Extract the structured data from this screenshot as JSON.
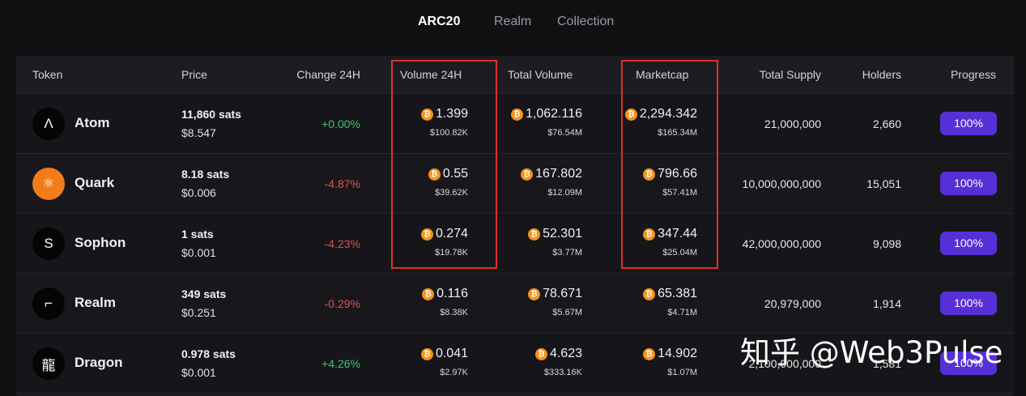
{
  "tabs": [
    {
      "label": "ARC20",
      "active": true
    },
    {
      "label": "Realm",
      "active": false
    },
    {
      "label": "Collection",
      "active": false
    }
  ],
  "columns": {
    "token": "Token",
    "price": "Price",
    "change": "Change 24H",
    "volume24": "Volume 24H",
    "total_volume": "Total Volume",
    "marketcap": "Marketcap",
    "total_supply": "Total Supply",
    "holders": "Holders",
    "progress": "Progress"
  },
  "rows": [
    {
      "name": "Atom",
      "icon": "atom-logo-icon",
      "avatar_glyph": "Λ",
      "price_sats": "11,860 sats",
      "price_usd": "$8.547",
      "change": "+0.00%",
      "change_dir": "pos",
      "vol24_btc": "1.399",
      "vol24_usd": "$100.82K",
      "tvol_btc": "1,062.116",
      "tvol_usd": "$76.54M",
      "mcap_btc": "2,294.342",
      "mcap_usd": "$165.34M",
      "supply": "21,000,000",
      "holders": "2,660",
      "progress": "100%"
    },
    {
      "name": "Quark",
      "icon": "quark-atom-icon",
      "avatar_glyph": "⚛",
      "price_sats": "8.18 sats",
      "price_usd": "$0.006",
      "change": "-4.87%",
      "change_dir": "neg",
      "vol24_btc": "0.55",
      "vol24_usd": "$39.62K",
      "tvol_btc": "167.802",
      "tvol_usd": "$12.09M",
      "mcap_btc": "796.66",
      "mcap_usd": "$57.41M",
      "supply": "10,000,000,000",
      "holders": "15,051",
      "progress": "100%"
    },
    {
      "name": "Sophon",
      "icon": "sophon-letter-icon",
      "avatar_glyph": "S",
      "price_sats": "1 sats",
      "price_usd": "$0.001",
      "change": "-4.23%",
      "change_dir": "neg",
      "vol24_btc": "0.274",
      "vol24_usd": "$19.78K",
      "tvol_btc": "52.301",
      "tvol_usd": "$3.77M",
      "mcap_btc": "347.44",
      "mcap_usd": "$25.04M",
      "supply": "42,000,000,000",
      "holders": "9,098",
      "progress": "100%"
    },
    {
      "name": "Realm",
      "icon": "realm-pixel-icon",
      "avatar_glyph": "⌐",
      "price_sats": "349 sats",
      "price_usd": "$0.251",
      "change": "-0.29%",
      "change_dir": "neg",
      "vol24_btc": "0.116",
      "vol24_usd": "$8.38K",
      "tvol_btc": "78.671",
      "tvol_usd": "$5.67M",
      "mcap_btc": "65.381",
      "mcap_usd": "$4.71M",
      "supply": "20,979,000",
      "holders": "1,914",
      "progress": "100%"
    },
    {
      "name": "Dragon",
      "icon": "dragon-logo-icon",
      "avatar_glyph": "龍",
      "price_sats": "0.978 sats",
      "price_usd": "$0.001",
      "change": "+4.26%",
      "change_dir": "pos",
      "vol24_btc": "0.041",
      "vol24_usd": "$2.97K",
      "tvol_btc": "4.623",
      "tvol_usd": "$333.16K",
      "mcap_btc": "14.902",
      "mcap_usd": "$1.07M",
      "supply": "2,100,000,000",
      "holders": "1,581",
      "progress": "100%"
    }
  ],
  "btc_glyph": "₿",
  "watermark": "知乎 @Web3Pulse",
  "colors": {
    "accent": "#5630d6",
    "positive": "#3ec46d",
    "negative": "#e0514f",
    "btc": "#f7931a",
    "highlight": "#e0302b"
  }
}
